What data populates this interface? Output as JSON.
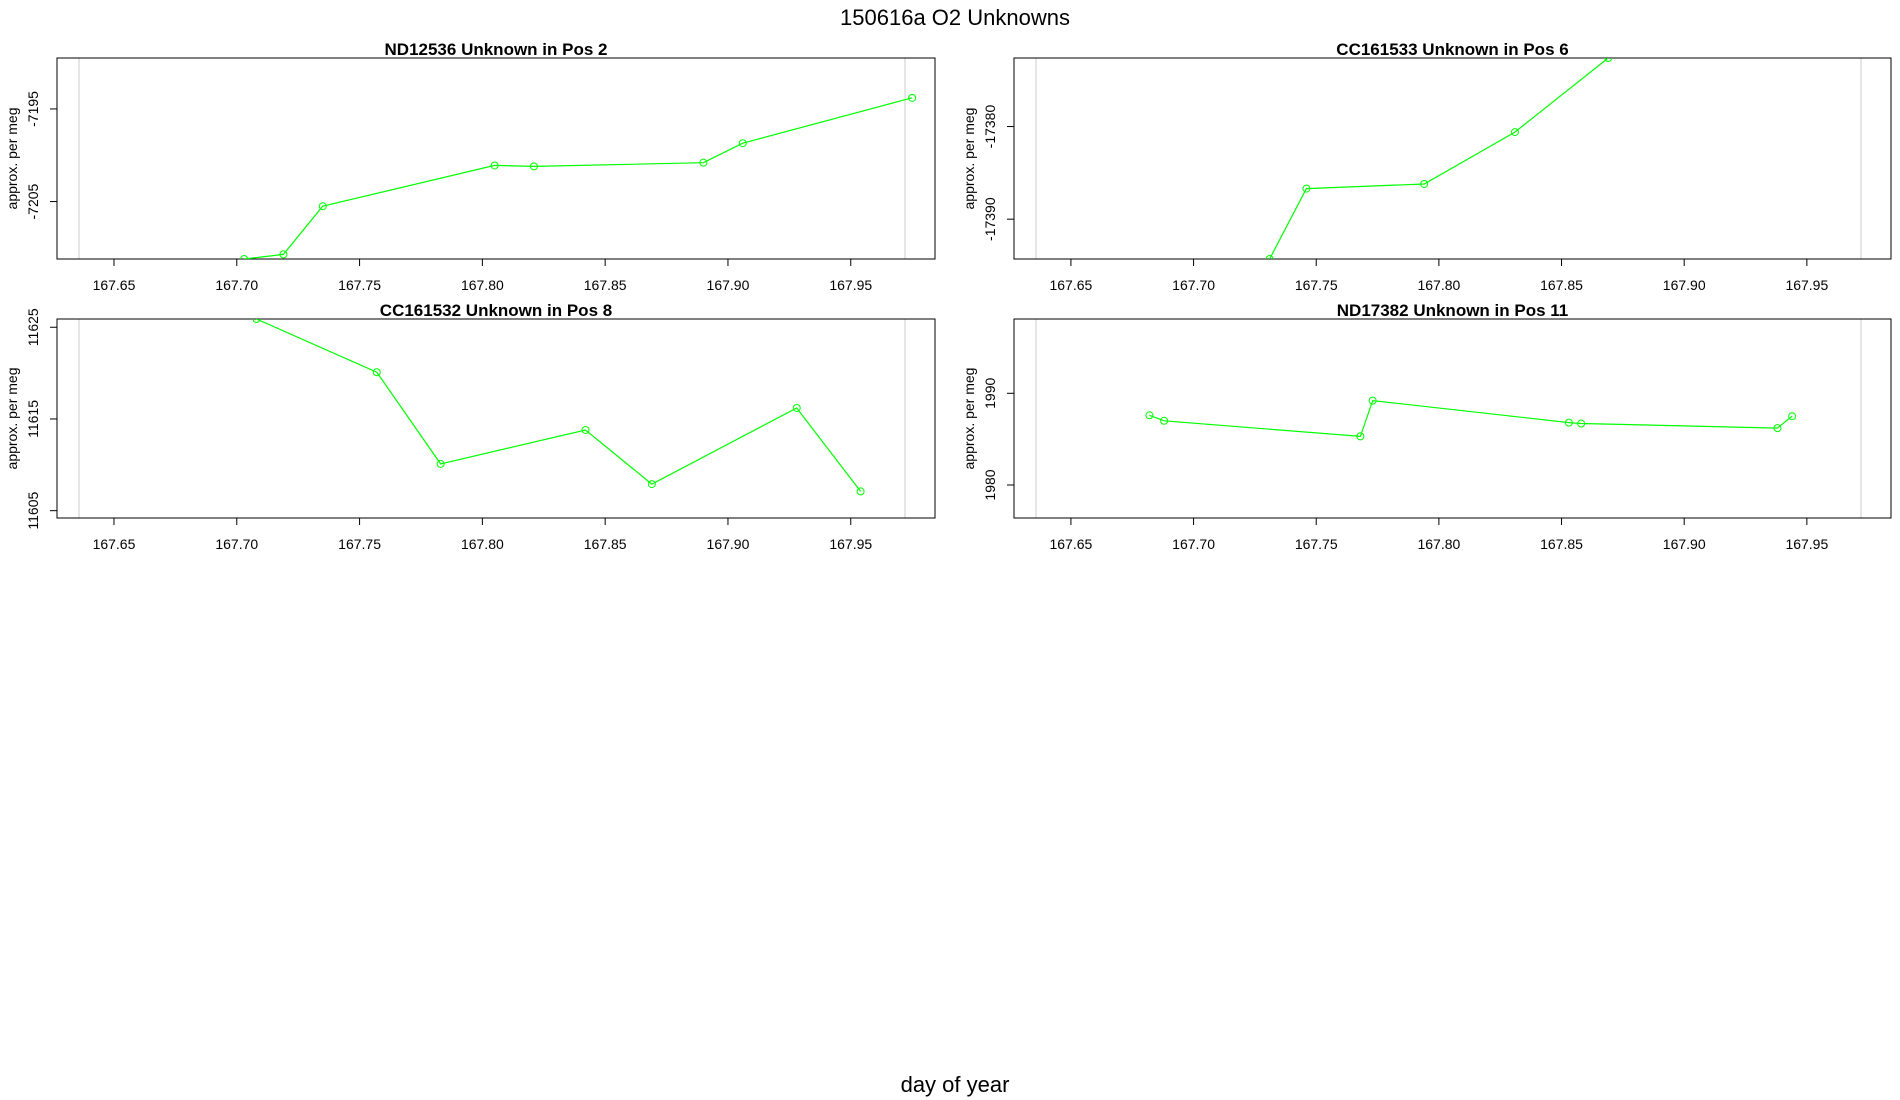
{
  "title": "150616a  O2 Unknowns",
  "xlabel": "day of year",
  "series_color": "#00ff00",
  "chart_data": [
    {
      "type": "line",
      "title": "ND12536    Unknown in Pos 2",
      "ylabel": "approx. per meg",
      "xlim": [
        167.6268,
        167.9843
      ],
      "ylim": [
        -7211.2,
        -7189.5
      ],
      "xticks": [
        "167.65",
        "167.70",
        "167.75",
        "167.80",
        "167.85",
        "167.90",
        "167.95"
      ],
      "yticks": [
        "-7195",
        "-7205"
      ],
      "series": [
        {
          "x": [
            167.703,
            167.719,
            167.735,
            167.805,
            167.821,
            167.89,
            167.906,
            167.975
          ],
          "y": [
            -7211.2,
            -7210.7,
            -7205.5,
            -7201.1,
            -7201.2,
            -7200.8,
            -7198.7,
            -7193.8
          ]
        }
      ]
    },
    {
      "type": "line",
      "title": "CC161533    Unknown in Pos 6",
      "ylabel": "approx. per meg",
      "xlim": [
        167.6268,
        167.9843
      ],
      "ylim": [
        -17394.3,
        -17372.6
      ],
      "xticks": [
        "167.65",
        "167.70",
        "167.75",
        "167.80",
        "167.85",
        "167.90",
        "167.95"
      ],
      "yticks": [
        "-17380",
        "-17390"
      ],
      "series": [
        {
          "x": [
            167.731,
            167.746,
            167.794,
            167.831,
            167.869
          ],
          "y": [
            -17394.3,
            -17386.7,
            -17386.2,
            -17380.6,
            -17372.6
          ]
        }
      ]
    },
    {
      "type": "line",
      "title": "CC161532    Unknown in Pos 8",
      "ylabel": "approx. per meg",
      "xlim": [
        167.6268,
        167.9843
      ],
      "ylim": [
        11604.2,
        11625.9
      ],
      "xticks": [
        "167.65",
        "167.70",
        "167.75",
        "167.80",
        "167.85",
        "167.90",
        "167.95"
      ],
      "yticks": [
        "11605",
        "11615",
        "11625"
      ],
      "series": [
        {
          "x": [
            167.708,
            167.757,
            167.783,
            167.842,
            167.869,
            167.928,
            167.954
          ],
          "y": [
            11625.9,
            11620.1,
            11610.1,
            11613.8,
            11607.9,
            11616.2,
            11607.1
          ]
        }
      ]
    },
    {
      "type": "line",
      "title": "ND17382    Unknown in Pos 11",
      "ylabel": "approx. per meg",
      "xlim": [
        167.6268,
        167.9843
      ],
      "ylim": [
        1976.4,
        1998.1
      ],
      "xticks": [
        "167.65",
        "167.70",
        "167.75",
        "167.80",
        "167.85",
        "167.90",
        "167.95"
      ],
      "yticks": [
        "1980",
        "1990"
      ],
      "series": [
        {
          "x": [
            167.682,
            167.688,
            167.768,
            167.773,
            167.853,
            167.858,
            167.938,
            167.944
          ],
          "y": [
            1987.6,
            1987.0,
            1985.3,
            1989.2,
            1986.8,
            1986.7,
            1986.2,
            1987.5
          ]
        }
      ]
    }
  ]
}
